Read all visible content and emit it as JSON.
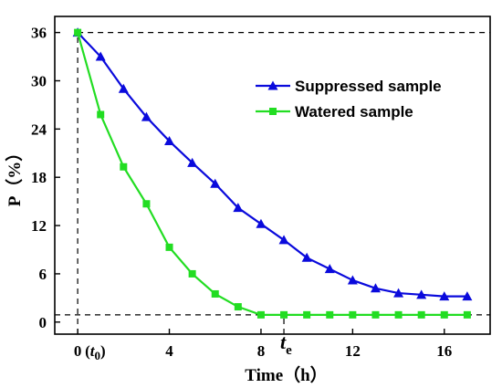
{
  "chart_data": {
    "type": "line",
    "title": "",
    "xlabel": "Time（h）",
    "ylabel": "P（%）",
    "xlim": [
      -1,
      18
    ],
    "ylim": [
      -1.5,
      38
    ],
    "xticks": [
      0,
      4,
      8,
      12,
      16
    ],
    "yticks": [
      0,
      6,
      12,
      18,
      24,
      30,
      36
    ],
    "x_tick_labels": [
      "0",
      "4",
      "8",
      "12",
      "16"
    ],
    "y_tick_labels": [
      "0",
      "6",
      "12",
      "18",
      "24",
      "30",
      "36"
    ],
    "grid": false,
    "legend_position": "top-right",
    "series": [
      {
        "name": "Suppressed sample",
        "color": "#0a0adc",
        "marker": "triangle",
        "x": [
          0,
          1,
          2,
          3,
          4,
          5,
          6,
          7,
          8,
          9,
          10,
          11,
          12,
          13,
          14,
          15,
          16,
          17
        ],
        "y": [
          36,
          33,
          29,
          25.5,
          22.5,
          19.8,
          17.2,
          14.2,
          12.2,
          10.2,
          8,
          6.6,
          5.2,
          4.2,
          3.6,
          3.4,
          3.2,
          3.2
        ]
      },
      {
        "name": "Watered sample",
        "color": "#22dd22",
        "marker": "square",
        "x": [
          0,
          1,
          2,
          3,
          4,
          5,
          6,
          7,
          8,
          9,
          10,
          11,
          12,
          13,
          14,
          15,
          16,
          17
        ],
        "y": [
          36,
          25.8,
          19.3,
          14.7,
          9.3,
          6,
          3.5,
          1.9,
          0.9,
          0.9,
          0.9,
          0.9,
          0.9,
          0.9,
          0.9,
          0.9,
          0.9,
          0.9
        ]
      }
    ],
    "reference_lines": [
      {
        "orientation": "horizontal",
        "y": 36,
        "x_from": 0,
        "x_to": 18
      },
      {
        "orientation": "horizontal",
        "y": 0.9,
        "x_from": -1,
        "x_to": 18
      },
      {
        "orientation": "vertical",
        "x": 0,
        "y_from": -1.5,
        "y_to": 36
      },
      {
        "orientation": "vertical",
        "x": 9,
        "y_from": -1.5,
        "y_to": 0.9
      }
    ],
    "annotations": {
      "t0_label": "t",
      "t0_subscript": "0",
      "te_label": "t",
      "te_subscript": "e",
      "te_x": 9
    }
  }
}
